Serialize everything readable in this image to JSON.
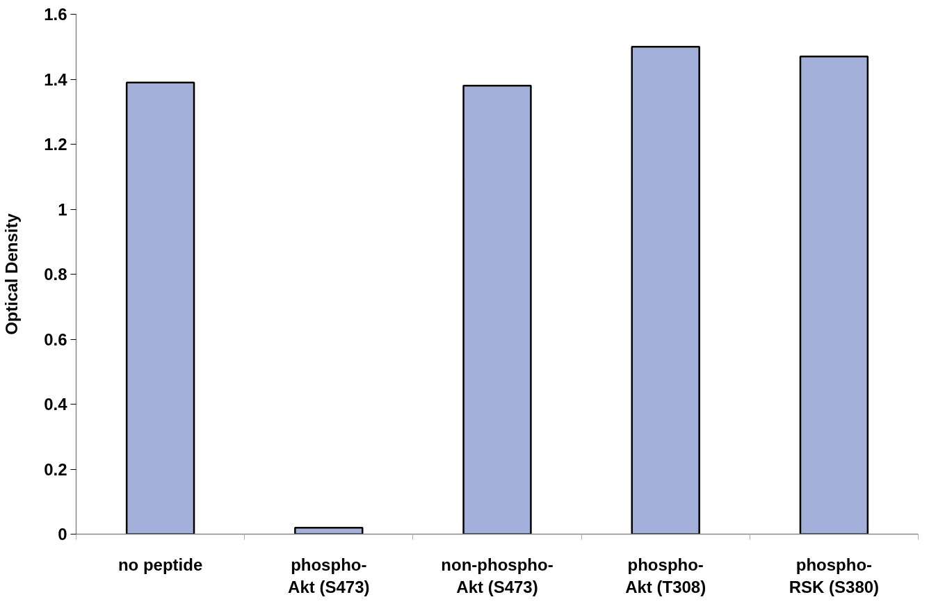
{
  "chart_data": {
    "type": "bar",
    "ylabel": "Optical Density",
    "categories": [
      "no peptide",
      "phospho-\nAkt (S473)",
      "non-phospho-\nAkt (S473)",
      "phospho-\nAkt (T308)",
      "phospho-\nRSK (S380)"
    ],
    "values": [
      1.39,
      0.02,
      1.38,
      1.5,
      1.47
    ],
    "color": "#a3b0d9",
    "ylim": [
      0,
      1.6
    ],
    "yticks": [
      0,
      0.2,
      0.4,
      0.6,
      0.8,
      1,
      1.2,
      1.4,
      1.6
    ],
    "grid": false
  }
}
